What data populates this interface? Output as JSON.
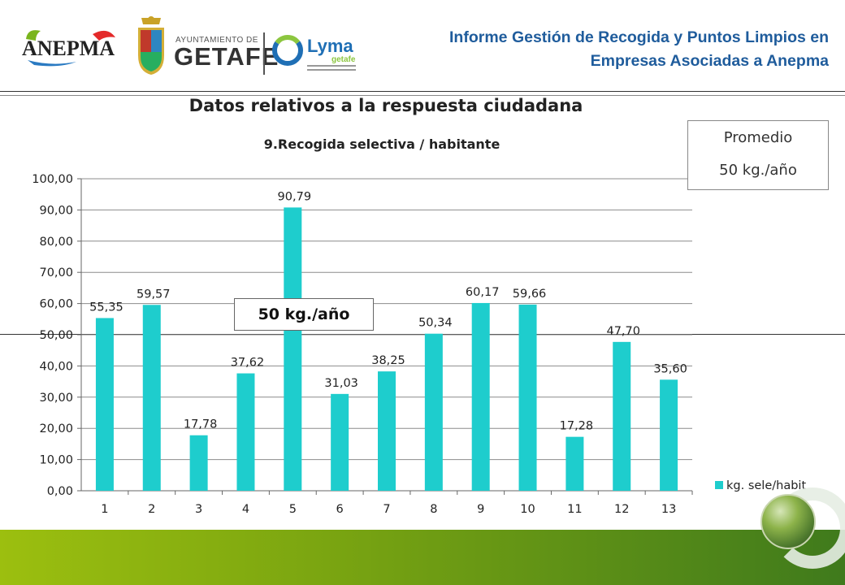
{
  "header": {
    "report_title_line1": "Informe Gestión de Recogida y Puntos Limpios en",
    "report_title_line2": "Empresas Asociadas a Anepma",
    "logo_anepma": "ANEPMA",
    "logo_ayuntamiento": "AYUNTAMIENTO DE",
    "logo_getafe": "GETAFE",
    "logo_lyma": "Lyma",
    "logo_lyma_sub": "getafe"
  },
  "section_title": "Datos relativos a la respuesta ciudadana",
  "average_box": {
    "line1": "Promedio",
    "line2": "50 kg./año"
  },
  "reference_label": "50 kg./año",
  "colors": {
    "bar": "#1ecdcd",
    "title": "#1f5c9c",
    "band_start": "#9cbf0f",
    "band_end": "#3f7a1c"
  },
  "chart_data": {
    "type": "bar",
    "title": "9.Recogida selectiva / habitante",
    "categories": [
      "1",
      "2",
      "3",
      "4",
      "5",
      "6",
      "7",
      "8",
      "9",
      "10",
      "11",
      "12",
      "13"
    ],
    "series": [
      {
        "name": "kg. sele/habit",
        "values": [
          55.35,
          59.57,
          17.78,
          37.62,
          90.79,
          31.03,
          38.25,
          50.34,
          60.17,
          59.66,
          17.28,
          47.7,
          35.6
        ]
      }
    ],
    "data_labels": [
      "55,35",
      "59,57",
      "17,78",
      "37,62",
      "90,79",
      "31,03",
      "38,25",
      "50,34",
      "60,17",
      "59,66",
      "17,28",
      "47,70",
      "35,60"
    ],
    "ylim": [
      0,
      100
    ],
    "yticks": [
      "0,00",
      "10,00",
      "20,00",
      "30,00",
      "40,00",
      "50,00",
      "60,00",
      "70,00",
      "80,00",
      "90,00",
      "100,00"
    ],
    "grid": true,
    "legend": "bottom-right"
  }
}
